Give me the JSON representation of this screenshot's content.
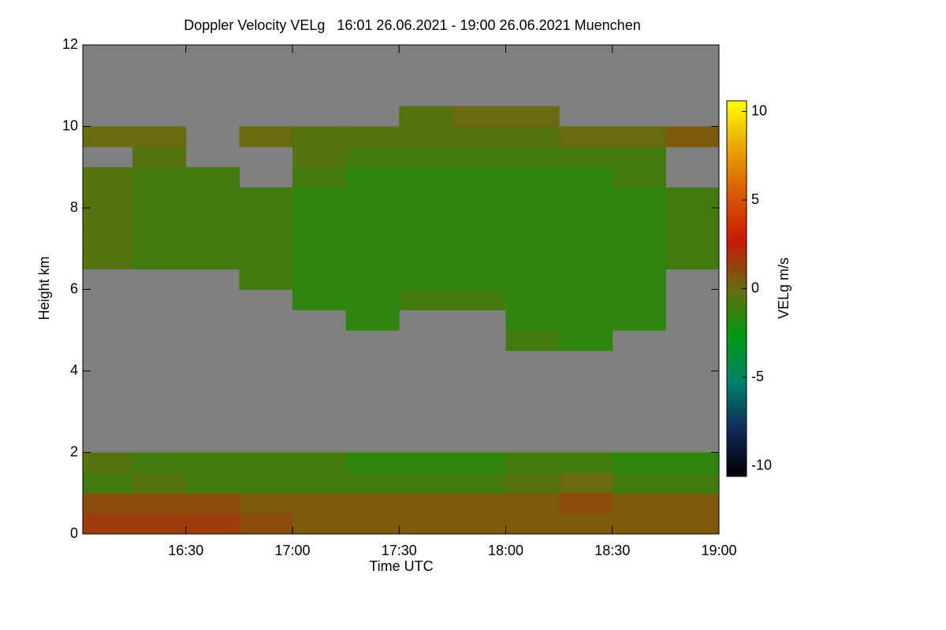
{
  "chart_data": {
    "type": "heatmap",
    "title": "Doppler Velocity VELg   16:01 26.06.2021 - 19:00 26.06.2021 Muenchen",
    "x_label": "Time UTC",
    "y_label": "Height km",
    "colorbar_label": "VELg m/s",
    "x": [
      16.125,
      16.375,
      16.625,
      16.875,
      17.125,
      17.375,
      17.625,
      17.875,
      18.125,
      18.375,
      18.625,
      18.875
    ],
    "y": [
      0.25,
      0.75,
      1.25,
      1.75,
      2.25,
      2.75,
      3.25,
      3.75,
      4.25,
      4.75,
      5.25,
      5.75,
      6.25,
      6.75,
      7.25,
      7.75,
      8.25,
      8.75,
      9.25,
      9.75,
      10.25,
      10.75,
      11.25,
      11.75
    ],
    "values": [
      [
        1.5,
        1.5,
        1.5,
        1,
        0.5,
        0.5,
        0.5,
        0.5,
        0.5,
        0.5,
        0.5,
        0.5
      ],
      [
        1,
        1,
        1,
        0.5,
        0.5,
        0.5,
        0.5,
        0.5,
        0.5,
        1,
        0.5,
        0.5
      ],
      [
        -1,
        -0.5,
        -1,
        -1,
        -1,
        -1,
        -1,
        -1,
        -0.5,
        0,
        -1,
        -1
      ],
      [
        -0.5,
        -1,
        -1,
        -1,
        -1,
        -1.5,
        -1.5,
        -1.5,
        -1,
        -1,
        -1.5,
        -1.5
      ],
      [
        null,
        null,
        null,
        null,
        null,
        null,
        null,
        null,
        null,
        null,
        null,
        null
      ],
      [
        null,
        null,
        null,
        null,
        null,
        null,
        null,
        null,
        null,
        null,
        null,
        null
      ],
      [
        null,
        null,
        null,
        null,
        null,
        null,
        null,
        null,
        null,
        null,
        null,
        null
      ],
      [
        null,
        null,
        null,
        null,
        null,
        null,
        null,
        null,
        null,
        null,
        null,
        null
      ],
      [
        null,
        null,
        null,
        null,
        null,
        null,
        null,
        null,
        null,
        null,
        null,
        null
      ],
      [
        null,
        null,
        null,
        null,
        null,
        null,
        null,
        null,
        -1,
        -1.5,
        null,
        null
      ],
      [
        null,
        null,
        null,
        null,
        null,
        -1.5,
        null,
        null,
        -1.5,
        -1.5,
        -1.5,
        null
      ],
      [
        null,
        null,
        null,
        null,
        -1.5,
        -1.5,
        -1,
        -1,
        -1.5,
        -1.5,
        -1.5,
        null
      ],
      [
        null,
        null,
        null,
        -1,
        -1.5,
        -1.5,
        -1.5,
        -1.5,
        -1.5,
        -1.5,
        -1.5,
        null
      ],
      [
        -0.5,
        -1,
        -1,
        -1,
        -1.5,
        -1.5,
        -1.5,
        -1.5,
        -1.5,
        -1.5,
        -1.5,
        -1
      ],
      [
        -0.5,
        -1,
        -1,
        -1,
        -1.5,
        -1.5,
        -1.5,
        -1.5,
        -1.5,
        -1.5,
        -1.5,
        -1
      ],
      [
        -0.5,
        -1,
        -1,
        -1,
        -1.5,
        -1.5,
        -1.5,
        -1.5,
        -1.5,
        -1.5,
        -1.5,
        -1
      ],
      [
        -0.5,
        -1,
        -1,
        -1,
        -1.5,
        -1.5,
        -1.5,
        -1.5,
        -1.5,
        -1.5,
        -1.5,
        -1
      ],
      [
        -0.5,
        -1,
        -1,
        null,
        -1,
        -1.5,
        -1.5,
        -1.5,
        -1.5,
        -1.5,
        -1,
        null
      ],
      [
        null,
        -0.5,
        null,
        null,
        -0.5,
        -1,
        -1,
        -1,
        -1,
        -1,
        -1,
        null
      ],
      [
        0,
        0,
        null,
        0,
        -0.5,
        -0.5,
        -0.5,
        -0.5,
        -0.5,
        0,
        0,
        0.5
      ],
      [
        null,
        null,
        null,
        null,
        null,
        null,
        -0.5,
        0,
        0,
        null,
        null,
        null
      ],
      [
        null,
        null,
        null,
        null,
        null,
        null,
        null,
        null,
        null,
        null,
        null,
        null
      ],
      [
        null,
        null,
        null,
        null,
        null,
        null,
        null,
        null,
        null,
        null,
        null,
        null
      ],
      [
        null,
        null,
        null,
        null,
        null,
        null,
        null,
        null,
        null,
        null,
        null,
        null
      ]
    ],
    "xlim": [
      16.0167,
      19.0
    ],
    "xticks": [
      {
        "value": 16.5,
        "label": "16:30"
      },
      {
        "value": 17.0,
        "label": "17:00"
      },
      {
        "value": 17.5,
        "label": "17:30"
      },
      {
        "value": 18.0,
        "label": "18:00"
      },
      {
        "value": 18.5,
        "label": "18:30"
      },
      {
        "value": 19.0,
        "label": "19:00"
      }
    ],
    "ylim": [
      0,
      12
    ],
    "yticks": [
      0,
      2,
      4,
      6,
      8,
      10,
      12
    ],
    "clim": [
      -10.6,
      10.6
    ],
    "cticks": [
      -10,
      -5,
      0,
      5,
      10
    ],
    "colormap": [
      "#000000",
      "#102a5a",
      "#00806a",
      "#009a10",
      "#6a6a10",
      "#c81808",
      "#d85a00",
      "#eaa400",
      "#ffff00"
    ],
    "nan_color": "#808080"
  }
}
